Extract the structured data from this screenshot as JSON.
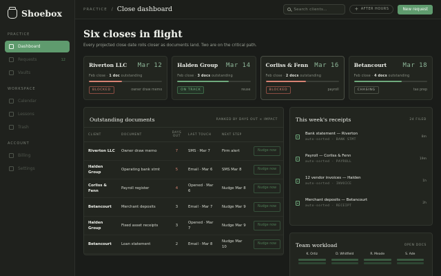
{
  "sidebar": {
    "brand": "Shoebox",
    "sections": [
      {
        "label": "PRACTICE",
        "items": [
          {
            "label": "Dashboard",
            "active": true,
            "badge": ""
          },
          {
            "label": "Requests",
            "active": false,
            "badge": "12"
          },
          {
            "label": "Vaults",
            "active": false,
            "badge": ""
          }
        ]
      },
      {
        "label": "WORKSPACE",
        "items": [
          {
            "label": "Calendar",
            "active": false,
            "badge": ""
          },
          {
            "label": "Lessons",
            "active": false,
            "badge": ""
          },
          {
            "label": "Trash",
            "active": false,
            "badge": ""
          }
        ]
      },
      {
        "label": "ACCOUNT",
        "items": [
          {
            "label": "Billing",
            "active": false,
            "badge": ""
          },
          {
            "label": "Settings",
            "active": false,
            "badge": ""
          }
        ]
      }
    ]
  },
  "topbar": {
    "crumb": "PRACTICE",
    "separator": "/",
    "page": "Close dashboard",
    "search_placeholder": "Search clients…",
    "filter_label": "AFTER HOURS",
    "new_label": "New request"
  },
  "hero": {
    "title": "Six closes in flight",
    "subtitle": "Every projected close date rolls closer as documents land. Two are on the critical path."
  },
  "closes": [
    {
      "client": "Riverton LLC",
      "date": "Mar 12",
      "meta_pre": "Feb close · ",
      "docs": "1 doc",
      "meta_post": " outstanding",
      "progress": 0.45,
      "bar_color": "#d88374",
      "status": "BLOCKED",
      "status_kind": "blocked",
      "note": "owner draw memo",
      "highlight": false
    },
    {
      "client": "Halden Group",
      "date": "Mar 14",
      "meta_pre": "Feb close · ",
      "docs": "3 docs",
      "meta_post": " outstanding",
      "progress": 0.7,
      "bar_color": "#6faa7d",
      "status": "ON TRACK",
      "status_kind": "ontrack",
      "note": "reuse",
      "highlight": false
    },
    {
      "client": "Corliss & Fenn",
      "date": "Mar 16",
      "meta_pre": "Feb close · ",
      "docs": "2 docs",
      "meta_post": " outstanding",
      "progress": 0.55,
      "bar_color": "#d88374",
      "status": "BLOCKED",
      "status_kind": "blocked",
      "note": "payroll",
      "highlight": true
    },
    {
      "client": "Betancourt",
      "date": "Mar 18",
      "meta_pre": "Feb close · ",
      "docs": "4 docs",
      "meta_post": " outstanding",
      "progress": 0.65,
      "bar_color": "#6faa7d",
      "status": "CHASING",
      "status_kind": "chasing",
      "note": "tax prep",
      "highlight": false
    }
  ],
  "docs": {
    "title": "Outstanding documents",
    "sort_label": "RANKED BY DAYS OUT × IMPACT",
    "columns": [
      "CLIENT",
      "DOCUMENT",
      "DAYS OUT",
      "LAST TOUCH",
      "NEXT STEP",
      ""
    ],
    "action_label": "Nudge now",
    "rows": [
      {
        "client": "Riverton LLC",
        "document": "Owner draw memo",
        "days": "7",
        "warn": true,
        "last": "SMS · Mar 7",
        "next": "Firm alert"
      },
      {
        "client": "Halden Group",
        "document": "Operating bank stmt",
        "days": "5",
        "warn": true,
        "last": "Email · Mar 6",
        "next": "SMS Mar 8"
      },
      {
        "client": "Corliss & Fenn",
        "document": "Payroll register",
        "days": "4",
        "warn": true,
        "last": "Opened · Mar 6",
        "next": "Nudge Mar 8"
      },
      {
        "client": "Betancourt",
        "document": "Merchant deposits",
        "days": "3",
        "warn": false,
        "last": "Email · Mar 7",
        "next": "Nudge Mar 9"
      },
      {
        "client": "Halden Group",
        "document": "Fixed asset receipts",
        "days": "3",
        "warn": false,
        "last": "Opened · Mar 7",
        "next": "Nudge Mar 9"
      },
      {
        "client": "Betancourt",
        "document": "Loan statement",
        "days": "2",
        "warn": false,
        "last": "Email · Mar 8",
        "next": "Nudge Mar 10"
      }
    ]
  },
  "receipts": {
    "title": "This week's receipts",
    "count_label": "24 FILED",
    "items": [
      {
        "title": "Bank statement — Riverton",
        "meta": "auto-sorted · BANK STMT",
        "time": "8m"
      },
      {
        "title": "Payroll — Corliss & Fenn",
        "meta": "auto-sorted · PAYROLL",
        "time": "19m"
      },
      {
        "title": "12 vendor invoices — Halden",
        "meta": "auto-sorted · INVOICE",
        "time": "1h"
      },
      {
        "title": "Merchant deposits — Betancourt",
        "meta": "auto-sorted · RECEIPT",
        "time": "2h"
      }
    ]
  },
  "workload": {
    "title": "Team workload",
    "aux_label": "OPEN DOCS",
    "members": [
      "K. Ortiz",
      "D. Whitfield",
      "R. Meade",
      "S. Ade"
    ]
  },
  "colors": {
    "accent": "#5f9b6e",
    "danger": "#d88374",
    "background": "#1a1c19"
  }
}
